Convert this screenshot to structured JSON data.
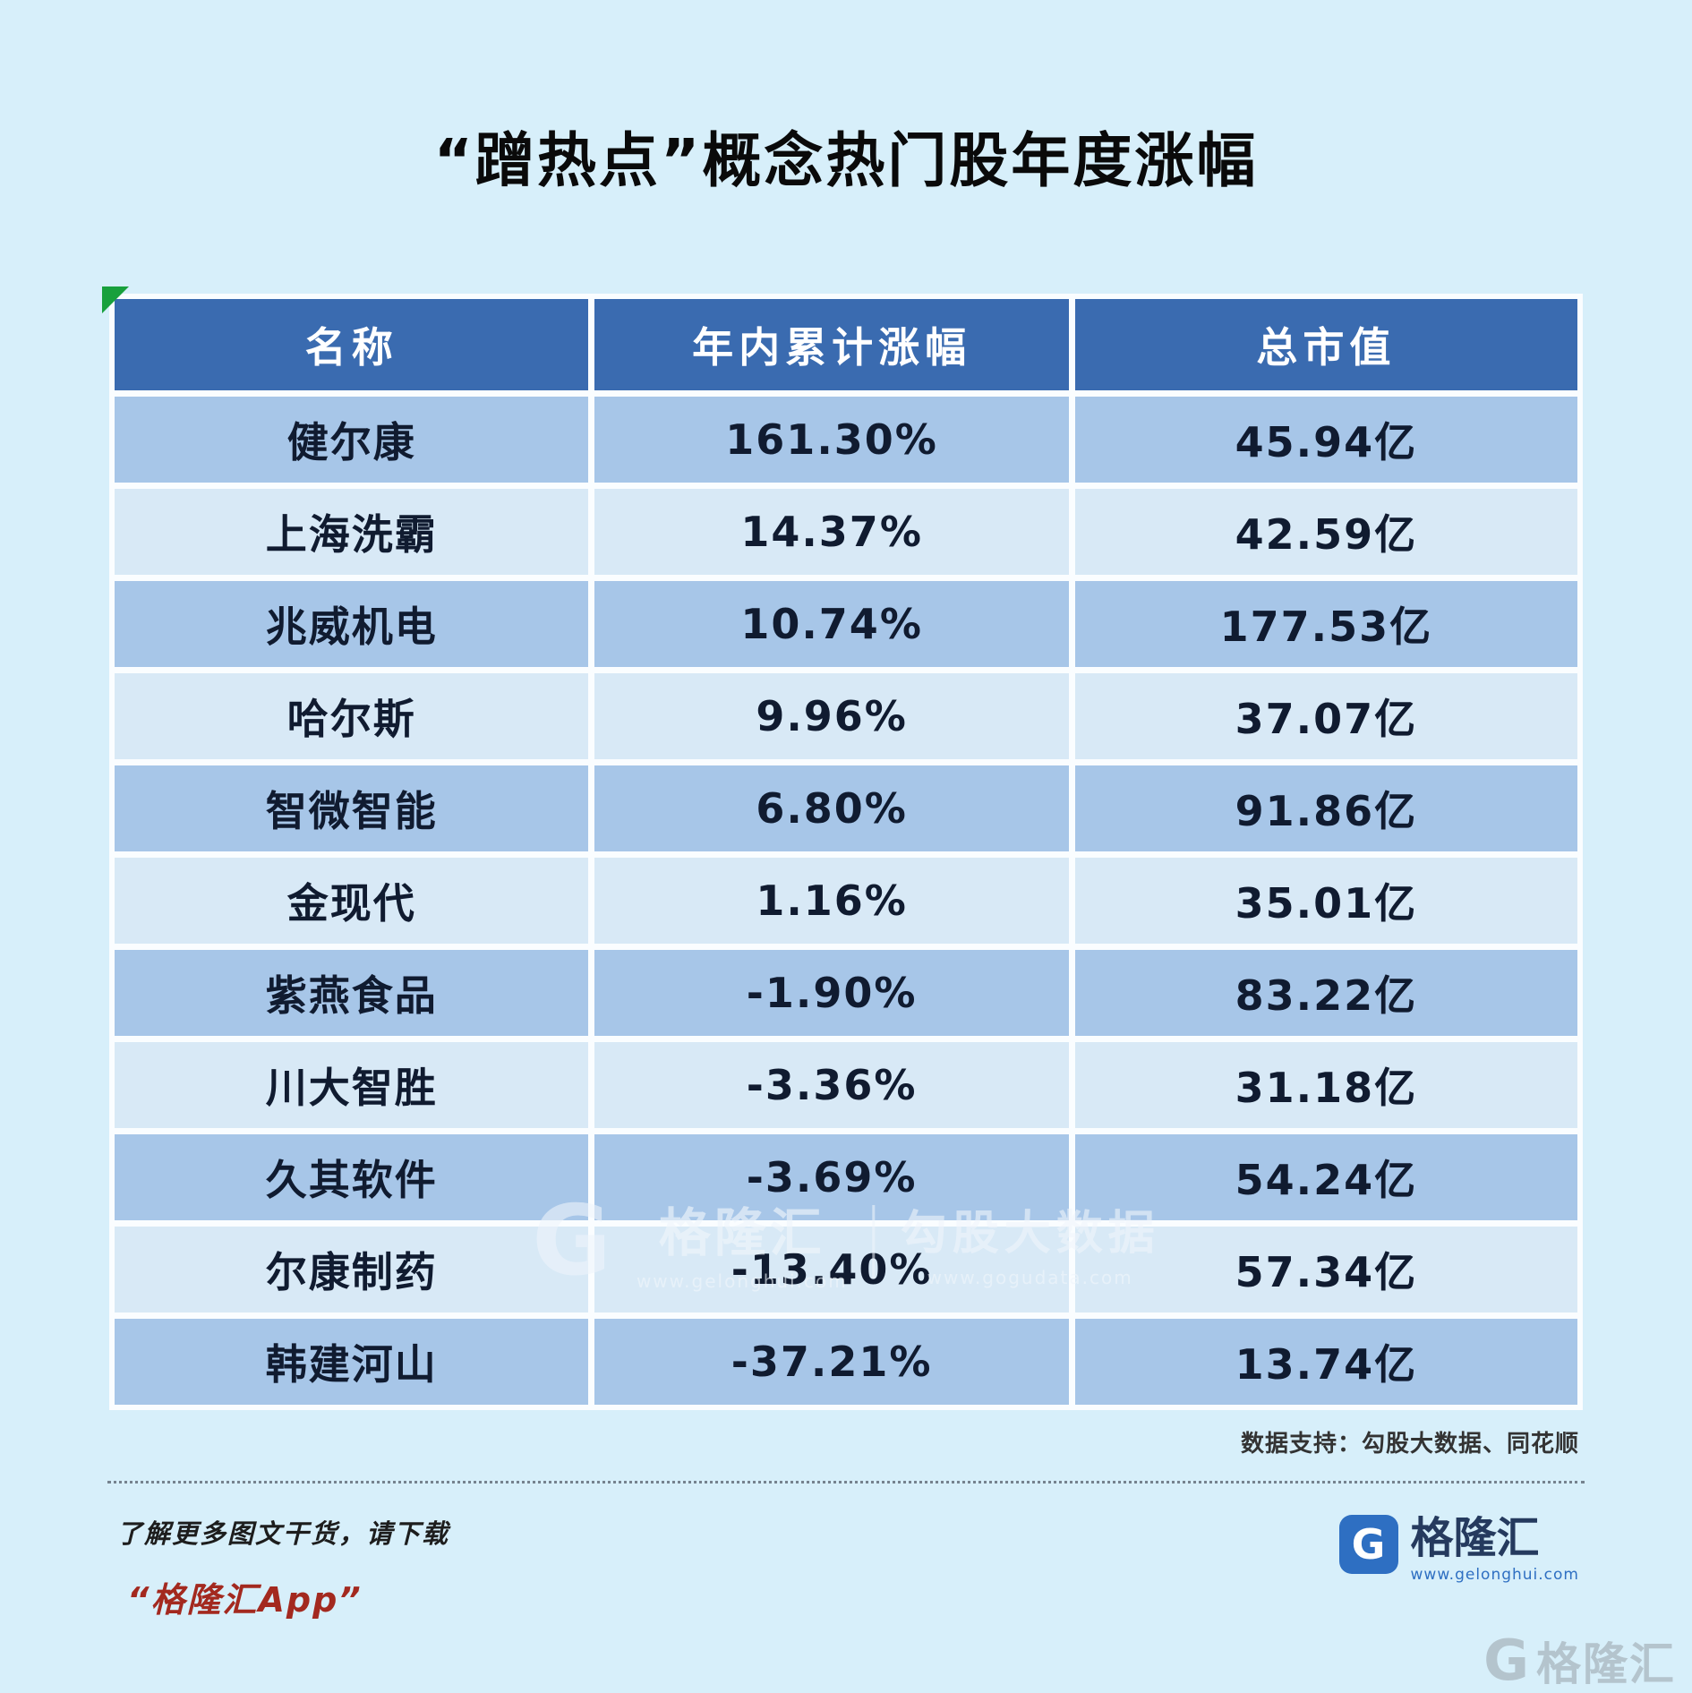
{
  "title": "“蹭热点”概念热门股年度涨幅",
  "chart_data": {
    "type": "table",
    "title": "“蹭热点”概念热门股年度涨幅",
    "columns": [
      "名称",
      "年内累计涨幅",
      "总市值"
    ],
    "rows": [
      [
        "健尔康",
        "161.30%",
        "45.94亿"
      ],
      [
        "上海洗霸",
        "14.37%",
        "42.59亿"
      ],
      [
        "兆威机电",
        "10.74%",
        "177.53亿"
      ],
      [
        "哈尔斯",
        "9.96%",
        "37.07亿"
      ],
      [
        "智微智能",
        "6.80%",
        "91.86亿"
      ],
      [
        "金现代",
        "1.16%",
        "35.01亿"
      ],
      [
        "紫燕食品",
        "-1.90%",
        "83.22亿"
      ],
      [
        "川大智胜",
        "-3.36%",
        "31.18亿"
      ],
      [
        "久其软件",
        "-3.69%",
        "54.24亿"
      ],
      [
        "尔康制药",
        "-13.40%",
        "57.34亿"
      ],
      [
        "韩建河山",
        "-37.21%",
        "13.74亿"
      ]
    ]
  },
  "source_note": "数据支持：勾股大数据、同花顺",
  "footer": {
    "promo_line1": "了解更多图文干货，请下载",
    "promo_line2": "“格隆汇App”",
    "brand_glyph": "G",
    "brand_name": "格隆汇",
    "brand_url": "www.gelonghui.com"
  },
  "watermark": {
    "glyph": "G",
    "brand": "格隆汇",
    "brand_url": "www.gelonghui.com",
    "partner": "勾股大数据",
    "partner_url": "www.gogudata.com"
  },
  "colors": {
    "page_bg": "#D7EFFA",
    "header_bg": "#3A6BB0",
    "row_dark": "#A7C6E8",
    "row_light": "#D8E9F6",
    "table_text": "#101B30",
    "accent_red": "#A3291F",
    "brand_blue": "#2E6FC2",
    "marker_green": "#18A03C"
  }
}
